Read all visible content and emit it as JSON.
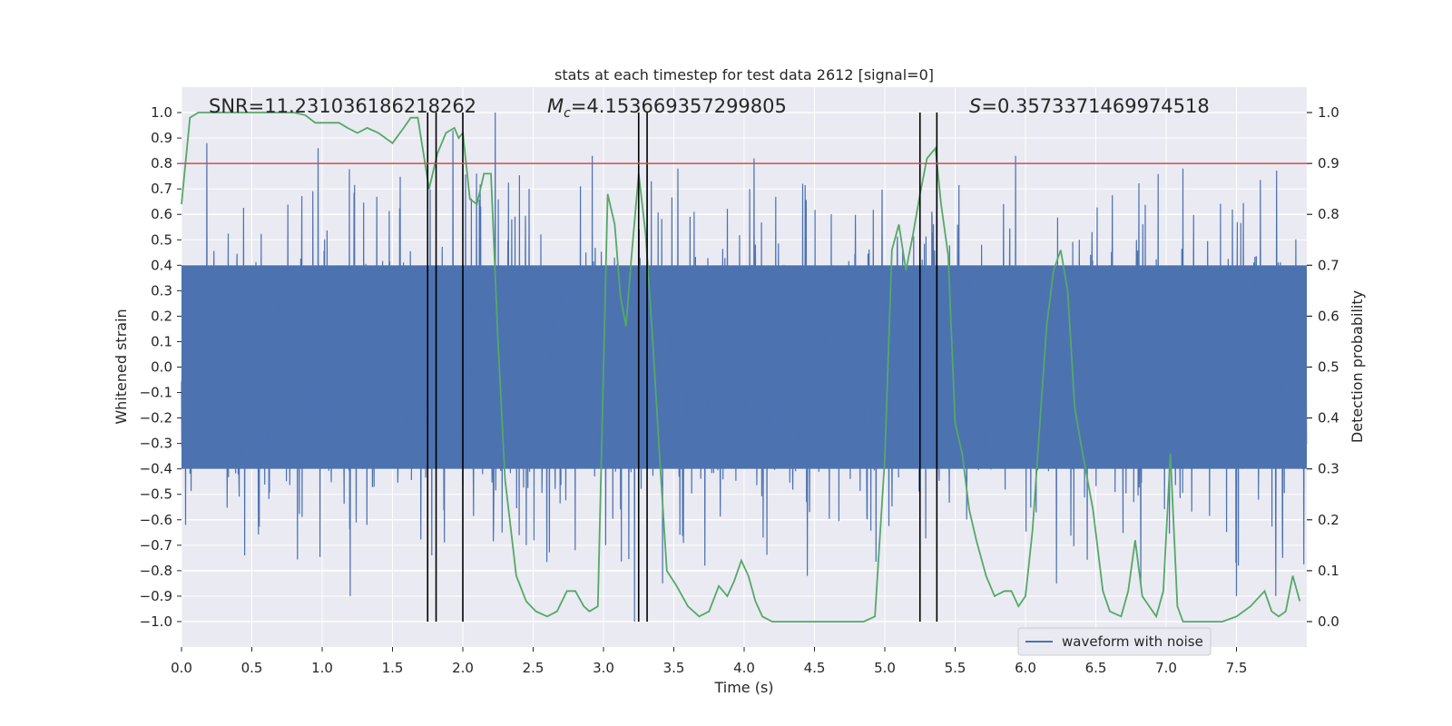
{
  "chart_data": {
    "type": "line",
    "title": "stats at each timestep for test data 2612 [signal=0]",
    "xlabel": "Time (s)",
    "ylabel": "Whitened strain",
    "y2label": "Detection probability",
    "xlim": [
      0.0,
      8.0
    ],
    "ylim": [
      -1.1,
      1.1
    ],
    "y2lim": [
      -0.05,
      1.05
    ],
    "x_ticks": [
      0.0,
      0.5,
      1.0,
      1.5,
      2.0,
      2.5,
      3.0,
      3.5,
      4.0,
      4.5,
      5.0,
      5.5,
      6.0,
      6.5,
      7.0,
      7.5
    ],
    "x_tick_labels": [
      "0.0",
      "0.5",
      "1.0",
      "1.5",
      "2.0",
      "2.5",
      "3.0",
      "3.5",
      "4.0",
      "4.5",
      "5.0",
      "5.5",
      "6.0",
      "6.5",
      "7.0",
      "7.5"
    ],
    "y_ticks": [
      -1.0,
      -0.9,
      -0.8,
      -0.7,
      -0.6,
      -0.5,
      -0.4,
      -0.3,
      -0.2,
      -0.1,
      0.0,
      0.1,
      0.2,
      0.3,
      0.4,
      0.5,
      0.6,
      0.7,
      0.8,
      0.9,
      1.0
    ],
    "y_tick_labels": [
      "−1.0",
      "−0.9",
      "−0.8",
      "−0.7",
      "−0.6",
      "−0.5",
      "−0.4",
      "−0.3",
      "−0.2",
      "−0.1",
      "0.0",
      "0.1",
      "0.2",
      "0.3",
      "0.4",
      "0.5",
      "0.6",
      "0.7",
      "0.8",
      "0.9",
      "1.0"
    ],
    "y2_ticks": [
      0.0,
      0.1,
      0.2,
      0.3,
      0.4,
      0.5,
      0.6,
      0.7,
      0.8,
      0.9,
      1.0
    ],
    "y2_tick_labels": [
      "0.0",
      "0.1",
      "0.2",
      "0.3",
      "0.4",
      "0.5",
      "0.6",
      "0.7",
      "0.8",
      "0.9",
      "1.0"
    ],
    "grid": true,
    "legend": {
      "placement": "lower-right",
      "entries": [
        "waveform with noise"
      ]
    },
    "annotations": {
      "snr": "SNR=11.231036186218262",
      "mc_symbol": "M",
      "mc_sub": "c",
      "mc_value": "=4.153669357299805",
      "s_symbol": "S",
      "s_value": "=0.3573371469974518"
    },
    "threshold": {
      "value": 0.8,
      "axis": "left",
      "color": "#c44e52"
    },
    "vertical_lines": [
      1.75,
      1.81,
      2.0,
      3.25,
      3.31,
      5.25,
      5.37
    ],
    "series": [
      {
        "name": "waveform with noise",
        "axis": "left",
        "color": "#4c72b0",
        "sample_rate_hz": 512,
        "noise_band": 0.4,
        "spike_times": [
          0.03,
          0.18,
          0.45,
          0.97,
          1.2,
          1.78,
          1.93,
          2.23,
          2.28,
          2.92,
          3.22,
          3.31,
          3.42,
          3.53,
          4.07,
          4.45,
          5.37,
          5.93,
          6.22,
          6.82,
          7.12,
          7.5,
          7.78
        ],
        "spike_values": [
          -0.62,
          0.88,
          -0.74,
          0.86,
          -0.9,
          -0.74,
          0.93,
          1.0,
          -0.65,
          0.83,
          -1.0,
          0.79,
          -0.85,
          0.78,
          0.82,
          -0.82,
          0.85,
          0.83,
          -0.85,
          -0.85,
          0.78,
          -0.9,
          -0.9
        ]
      },
      {
        "name": "",
        "axis": "right",
        "color": "#55a868",
        "x": [
          0.0,
          0.06,
          0.12,
          0.2,
          0.3,
          0.4,
          0.5,
          0.6,
          0.7,
          0.8,
          0.88,
          0.95,
          1.0,
          1.05,
          1.12,
          1.18,
          1.25,
          1.32,
          1.4,
          1.5,
          1.58,
          1.63,
          1.68,
          1.72,
          1.76,
          1.82,
          1.88,
          1.94,
          1.97,
          2.0,
          2.05,
          2.1,
          2.15,
          2.2,
          2.25,
          2.3,
          2.38,
          2.45,
          2.52,
          2.6,
          2.67,
          2.74,
          2.8,
          2.86,
          2.9,
          2.96,
          3.03,
          3.08,
          3.12,
          3.16,
          3.2,
          3.25,
          3.3,
          3.35,
          3.4,
          3.45,
          3.52,
          3.6,
          3.68,
          3.75,
          3.82,
          3.88,
          3.93,
          3.98,
          4.03,
          4.08,
          4.13,
          4.2,
          4.25,
          4.35,
          4.45,
          4.55,
          4.65,
          4.75,
          4.85,
          4.93,
          5.0,
          5.05,
          5.1,
          5.15,
          5.2,
          5.25,
          5.3,
          5.36,
          5.4,
          5.45,
          5.5,
          5.55,
          5.6,
          5.65,
          5.72,
          5.78,
          5.85,
          5.9,
          5.95,
          6.0,
          6.05,
          6.1,
          6.15,
          6.2,
          6.25,
          6.3,
          6.35,
          6.4,
          6.48,
          6.55,
          6.6,
          6.68,
          6.73,
          6.78,
          6.83,
          6.88,
          6.93,
          6.98,
          7.03,
          7.08,
          7.12,
          7.17,
          7.22,
          7.3,
          7.4,
          7.5,
          7.6,
          7.7,
          7.75,
          7.8,
          7.85,
          7.9,
          7.95
        ],
        "y": [
          0.82,
          0.99,
          1.0,
          1.0,
          1.0,
          1.0,
          1.0,
          1.0,
          1.0,
          1.0,
          0.995,
          0.98,
          0.98,
          0.98,
          0.98,
          0.97,
          0.96,
          0.97,
          0.96,
          0.94,
          0.97,
          0.99,
          0.99,
          0.92,
          0.85,
          0.92,
          0.96,
          0.97,
          0.95,
          0.96,
          0.83,
          0.82,
          0.88,
          0.88,
          0.55,
          0.28,
          0.09,
          0.04,
          0.02,
          0.01,
          0.02,
          0.06,
          0.06,
          0.03,
          0.02,
          0.03,
          0.84,
          0.78,
          0.64,
          0.58,
          0.72,
          0.88,
          0.76,
          0.55,
          0.32,
          0.1,
          0.07,
          0.03,
          0.01,
          0.02,
          0.07,
          0.05,
          0.08,
          0.12,
          0.09,
          0.04,
          0.01,
          0.0,
          0.0,
          0.0,
          0.0,
          0.0,
          0.0,
          0.0,
          0.0,
          0.01,
          0.32,
          0.73,
          0.78,
          0.69,
          0.76,
          0.84,
          0.91,
          0.93,
          0.82,
          0.72,
          0.39,
          0.33,
          0.22,
          0.16,
          0.09,
          0.05,
          0.06,
          0.06,
          0.03,
          0.05,
          0.18,
          0.38,
          0.58,
          0.69,
          0.73,
          0.65,
          0.42,
          0.34,
          0.22,
          0.06,
          0.02,
          0.01,
          0.06,
          0.16,
          0.05,
          0.03,
          0.01,
          0.06,
          0.33,
          0.03,
          0.0,
          0.0,
          0.0,
          0.0,
          0.0,
          0.01,
          0.03,
          0.06,
          0.02,
          0.01,
          0.02,
          0.09,
          0.04
        ]
      }
    ]
  }
}
